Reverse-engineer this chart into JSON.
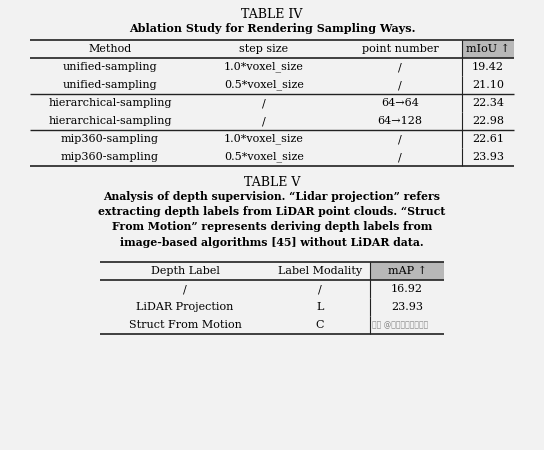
{
  "bg_color": "#f2f2f2",
  "table4_title": "TABLE IV",
  "table4_subtitle": "Ablation Study for Rendering Sampling Ways.",
  "table4_headers": [
    "Method",
    "step size",
    "point number",
    "mIoU ↑"
  ],
  "table4_rows": [
    [
      "unified-sampling",
      "1.0*voxel_size",
      "/",
      "19.42"
    ],
    [
      "unified-sampling",
      "0.5*voxel_size",
      "/",
      "21.10"
    ],
    [
      "hierarchical-sampling",
      "/",
      "64→64",
      "22.34"
    ],
    [
      "hierarchical-sampling",
      "/",
      "64→128",
      "22.98"
    ],
    [
      "mip360-sampling",
      "1.0*voxel_size",
      "/",
      "22.61"
    ],
    [
      "mip360-sampling",
      "0.5*voxel_size",
      "/",
      "23.93"
    ]
  ],
  "table5_title": "TABLE V",
  "table5_lines": [
    "Analysis of depth supervision. “Lidar projection” refers",
    "extracting depth labels from LiDAR point clouds. “Struct",
    "From Motion” represents deriving depth labels from",
    "image-based algorithms [45] without LiDAR data."
  ],
  "table5_headers": [
    "Depth Label",
    "Label Modality",
    "mAP ↑"
  ],
  "table5_rows": [
    [
      "/",
      "/",
      "16.92"
    ],
    [
      "LiDAR Projection",
      "L",
      "23.93"
    ],
    [
      "Struct From Motion",
      "C",
      ""
    ]
  ],
  "header_bg": "#b8b8b8",
  "line_color": "#222222",
  "white": "#ffffff",
  "watermark": "知乎 @自动驾驶之心星球"
}
